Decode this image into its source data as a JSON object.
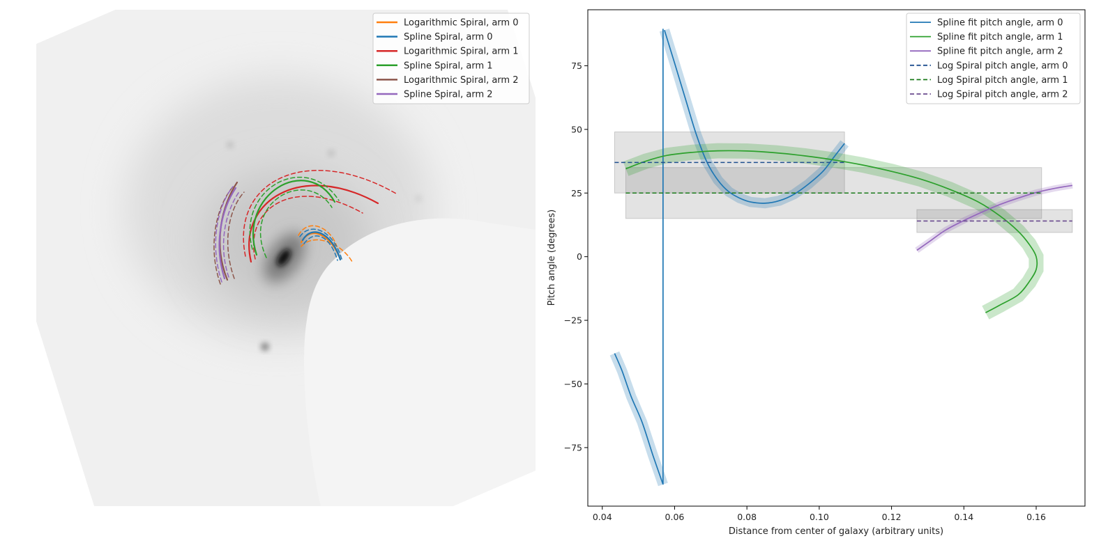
{
  "chart_data": [
    {
      "type": "image-overlay",
      "title": "",
      "legend_location": "top-right",
      "colors": {
        "log_arm0": "#ff7f0e",
        "spline_arm0": "#1f77b4",
        "log_arm1": "#d62728",
        "spline_arm1": "#2ca02c",
        "log_arm2": "#8c564b",
        "spline_arm2": "#9467bd"
      },
      "legend": [
        {
          "label": "Logarithmic Spiral, arm 0",
          "color": "#ff7f0e"
        },
        {
          "label": "Spline Spiral, arm 0",
          "color": "#1f77b4"
        },
        {
          "label": "Logarithmic Spiral, arm 1",
          "color": "#d62728"
        },
        {
          "label": "Spline Spiral, arm 1",
          "color": "#2ca02c"
        },
        {
          "label": "Logarithmic Spiral, arm 2",
          "color": "#8c564b"
        },
        {
          "label": "Spline Spiral, arm 2",
          "color": "#9467bd"
        }
      ]
    },
    {
      "type": "line",
      "title": "",
      "xlabel": "Distance from center of galaxy (arbitrary units)",
      "ylabel": "Pitch angle (degrees)",
      "xlim": [
        0.036,
        0.1735
      ],
      "ylim": [
        -98,
        97
      ],
      "xticks": [
        0.04,
        0.06,
        0.08,
        0.1,
        0.12,
        0.14,
        0.16
      ],
      "xtick_labels": [
        "0.04",
        "0.06",
        "0.08",
        "0.10",
        "0.12",
        "0.14",
        "0.16"
      ],
      "yticks": [
        -75,
        -50,
        -25,
        0,
        25,
        50,
        75
      ],
      "ytick_labels": [
        "−75",
        "−50",
        "−25",
        "0",
        "25",
        "50",
        "75"
      ],
      "grid": false,
      "legend_location": "top-right",
      "series": [
        {
          "name": "Spline fit pitch angle, arm 0",
          "color": "#1f77b4",
          "style": "solid",
          "segments": [
            [
              [
                0.0434,
                -38
              ],
              [
                0.0455,
                -45
              ],
              [
                0.048,
                -55
              ],
              [
                0.051,
                -65
              ],
              [
                0.054,
                -78
              ],
              [
                0.0568,
                -89.5
              ]
            ],
            [
              [
                0.0568,
                -89.5
              ],
              [
                0.0568,
                89.5
              ]
            ],
            [
              [
                0.0572,
                89
              ],
              [
                0.06,
                76
              ],
              [
                0.063,
                62
              ],
              [
                0.066,
                48
              ],
              [
                0.069,
                37
              ],
              [
                0.072,
                30
              ],
              [
                0.075,
                25.5
              ],
              [
                0.078,
                23
              ],
              [
                0.081,
                21.5
              ],
              [
                0.085,
                21
              ],
              [
                0.089,
                22
              ],
              [
                0.093,
                24.5
              ],
              [
                0.097,
                28.5
              ],
              [
                0.101,
                33.5
              ],
              [
                0.104,
                39
              ],
              [
                0.107,
                44.5
              ]
            ]
          ],
          "band_halfwidth": 2
        },
        {
          "name": "Spline fit pitch angle, arm 1",
          "color": "#2ca02c",
          "style": "solid",
          "points": [
            [
              0.0465,
              34.5
            ],
            [
              0.052,
              37.5
            ],
            [
              0.058,
              39.8
            ],
            [
              0.065,
              41
            ],
            [
              0.072,
              41.6
            ],
            [
              0.08,
              41.5
            ],
            [
              0.088,
              40.8
            ],
            [
              0.096,
              39.6
            ],
            [
              0.104,
              38
            ],
            [
              0.112,
              36
            ],
            [
              0.12,
              33.5
            ],
            [
              0.128,
              30.5
            ],
            [
              0.136,
              26.5
            ],
            [
              0.144,
              21.5
            ],
            [
              0.15,
              16
            ],
            [
              0.155,
              10
            ],
            [
              0.158,
              5
            ],
            [
              0.16,
              0
            ],
            [
              0.16,
              -5
            ],
            [
              0.158,
              -10
            ],
            [
              0.155,
              -15
            ],
            [
              0.15,
              -19
            ],
            [
              0.146,
              -22
            ]
          ],
          "band_halfwidth": 3
        },
        {
          "name": "Spline fit pitch angle, arm 2",
          "color": "#9467bd",
          "style": "solid",
          "points": [
            [
              0.127,
              2.5
            ],
            [
              0.131,
              6.5
            ],
            [
              0.135,
              10.5
            ],
            [
              0.14,
              14.2
            ],
            [
              0.145,
              17.5
            ],
            [
              0.15,
              20.5
            ],
            [
              0.155,
              23
            ],
            [
              0.16,
              25.2
            ],
            [
              0.165,
              26.8
            ],
            [
              0.17,
              28
            ]
          ],
          "band_halfwidth": 1.2
        },
        {
          "name": "Log Spiral pitch angle, arm 0",
          "color": "#1f4f8f",
          "style": "dashed",
          "value": 37,
          "x_range": [
            0.0434,
            0.107
          ],
          "band": [
            25,
            49
          ]
        },
        {
          "name": "Log Spiral pitch angle, arm 1",
          "color": "#1a7a1a",
          "style": "dashed",
          "value": 25,
          "x_range": [
            0.0465,
            0.1615
          ],
          "band": [
            15,
            35
          ]
        },
        {
          "name": "Log Spiral pitch angle, arm 2",
          "color": "#6a4a8e",
          "style": "dashed",
          "value": 14,
          "x_range": [
            0.127,
            0.17
          ],
          "band": [
            9.5,
            18.5
          ]
        }
      ]
    }
  ]
}
